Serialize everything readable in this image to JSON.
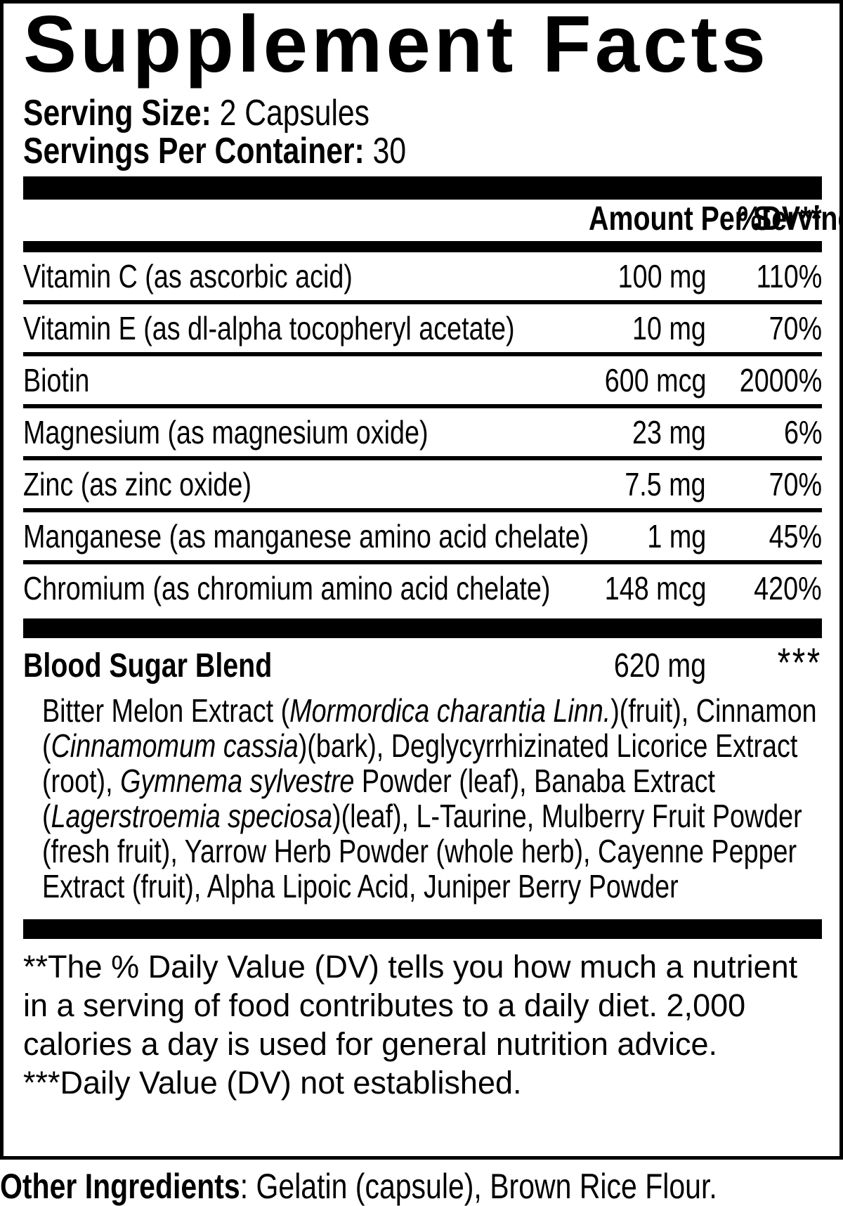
{
  "title": "Supplement Facts",
  "serving": {
    "size_label": "Serving Size:",
    "size_value": " 2 Capsules",
    "container_label": "Servings Per Container:",
    "container_value": " 30"
  },
  "table": {
    "header": {
      "amount_label": "Amount Per Serving",
      "dv_label": "%DV**"
    },
    "rows": [
      {
        "name": "Vitamin C (as ascorbic acid)",
        "amount": "100 mg",
        "dv": "110%"
      },
      {
        "name": "Vitamin E (as dl-alpha tocopheryl acetate)",
        "amount": "10 mg",
        "dv": "70%"
      },
      {
        "name": "Biotin",
        "amount": "600 mcg",
        "dv": "2000%"
      },
      {
        "name": "Magnesium (as magnesium oxide)",
        "amount": "23 mg",
        "dv": "6%"
      },
      {
        "name": "Zinc (as zinc oxide)",
        "amount": "7.5 mg",
        "dv": "70%"
      },
      {
        "name": "Manganese (as manganese amino acid chelate)",
        "amount": "1 mg",
        "dv": "45%"
      },
      {
        "name": "Chromium (as chromium amino acid chelate)",
        "amount": "148 mcg",
        "dv": "420%"
      }
    ]
  },
  "blend": {
    "name": "Blood Sugar Blend",
    "amount": "620 mg",
    "dv": "***",
    "ingredients": [
      {
        "text": "Bitter Melon Extract (",
        "italic": false
      },
      {
        "text": "Mormordica charantia Linn.",
        "italic": true
      },
      {
        "text": ")(fruit), Cinnamon (",
        "italic": false
      },
      {
        "text": "Cinnamomum cassia",
        "italic": true
      },
      {
        "text": ")(bark), Deglycyrrhizinated Licorice Extract (root), ",
        "italic": false
      },
      {
        "text": "Gymnema sylvestre",
        "italic": true
      },
      {
        "text": " Powder (leaf), Banaba Extract (",
        "italic": false
      },
      {
        "text": "Lagerstroemia speciosa",
        "italic": true
      },
      {
        "text": ")(leaf), L-Taurine, Mulberry Fruit Powder (fresh fruit), Yarrow Herb Powder (whole herb), Cayenne Pepper Extract (fruit), Alpha Lipoic Acid, Juniper Berry Powder",
        "italic": false
      }
    ]
  },
  "footnotes": {
    "dv_note": "**The % Daily Value (DV) tells you how much a nutrient in a serving of food contributes to a daily diet. 2,000 calories a day is used for general nutrition advice.",
    "not_established": "***Daily Value (DV) not established."
  },
  "other_ingredients": {
    "label": "Other Ingredients",
    "value": ": Gelatin (capsule), Brown Rice Flour."
  },
  "colors": {
    "ink": "#000000",
    "background": "#ffffff"
  }
}
